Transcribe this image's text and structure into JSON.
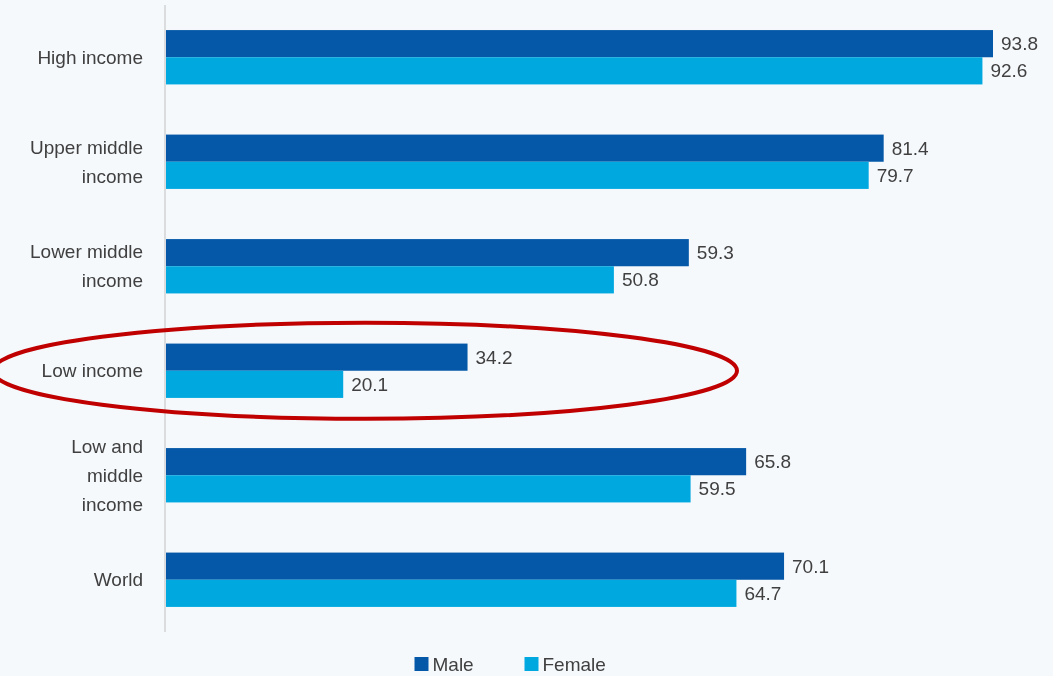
{
  "chart_data": {
    "type": "bar",
    "orientation": "horizontal",
    "categories": [
      "High income",
      "Upper middle income",
      "Lower middle income",
      "Low income",
      "Low and middle income",
      "World"
    ],
    "series": [
      {
        "name": "Male",
        "color": "#0558a8",
        "values": [
          93.8,
          81.4,
          59.3,
          34.2,
          65.8,
          70.1
        ]
      },
      {
        "name": "Female",
        "color": "#00a8e0",
        "values": [
          92.6,
          79.7,
          50.8,
          20.1,
          59.5,
          64.7
        ]
      }
    ],
    "data_labels": true,
    "legend": "bottom"
  }
}
